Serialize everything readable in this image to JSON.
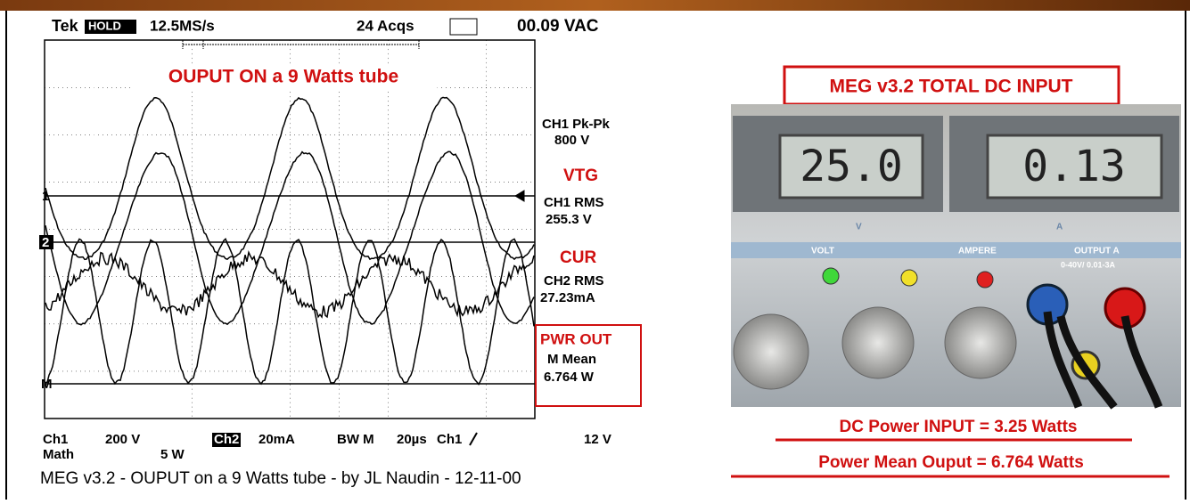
{
  "scope": {
    "header": {
      "brand": "Tek",
      "mode": "HOLD",
      "rate": "12.5MS/s",
      "acqs": "24 Acqs",
      "reading": "00.09 VAC"
    },
    "overlay_title": "OUPUT ON a 9 Watts tube",
    "markers": [
      "1",
      "2",
      "M"
    ],
    "readouts": {
      "pkpk_label": "CH1 Pk-Pk",
      "pkpk_value": "800 V",
      "vtg": "VTG",
      "ch1_rms_label": "CH1 RMS",
      "ch1_rms_value": "255.3 V",
      "cur": "CUR",
      "ch2_rms_label": "CH2 RMS",
      "ch2_rms_value": "27.23mA",
      "pwr": "PWR OUT",
      "mean_label": "M Mean",
      "mean_value": "6.764 W"
    },
    "footer": {
      "ch1": "Ch1",
      "ch1_scale": "200 V",
      "ch2": "Ch2",
      "ch2_scale": "20mA",
      "bw": "BW M",
      "time": "20µs",
      "trig_src": "Ch1",
      "trig_level": "12 V",
      "math": "Math",
      "math_scale": "5 W"
    },
    "caption": "MEG v3.2 - OUPUT on a 9 Watts tube - by JL Naudin - 12-11-00"
  },
  "supply": {
    "title": "MEG v3.2 TOTAL DC INPUT",
    "volt_display": "25.0",
    "amp_display": "0.13",
    "volt_unit": "V",
    "amp_unit": "A",
    "panel_labels": [
      "VOLT",
      "AMPERE",
      "OUTPUT A"
    ],
    "range": "0-40V/ 0.01-3A",
    "dc_input": "DC Power INPUT = 3.25 Watts",
    "mean_output": "Power Mean Ouput = 6.764 Watts"
  }
}
